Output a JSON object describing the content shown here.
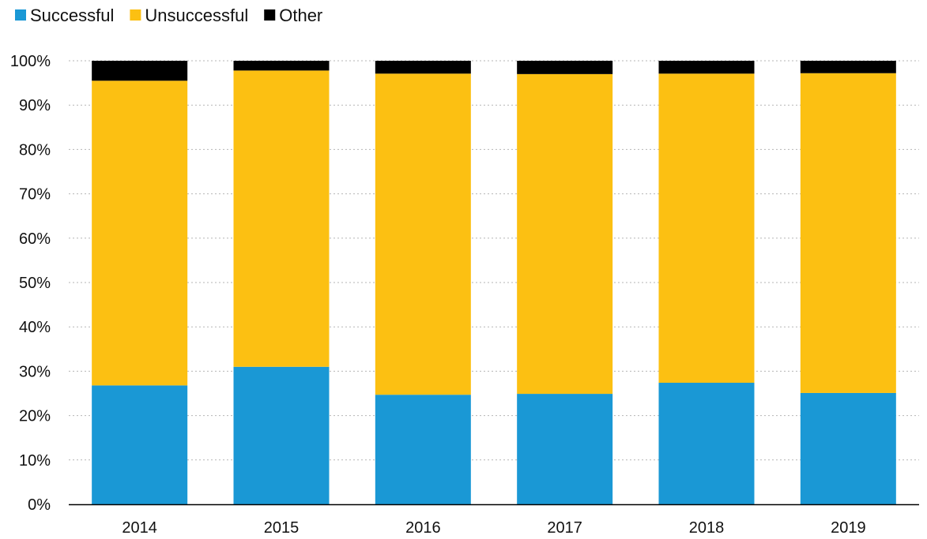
{
  "chart_data": {
    "type": "bar",
    "stacked": true,
    "title": "",
    "xlabel": "",
    "ylabel": "",
    "categories": [
      "2014",
      "2015",
      "2016",
      "2017",
      "2018",
      "2019"
    ],
    "series": [
      {
        "name": "Successful",
        "color": "#1a98d5",
        "values": [
          26.8,
          31.0,
          24.7,
          24.9,
          27.4,
          25.1
        ]
      },
      {
        "name": "Unsuccessful",
        "color": "#fcc012",
        "values": [
          68.7,
          66.8,
          72.4,
          72.1,
          69.7,
          72.1
        ]
      },
      {
        "name": "Other",
        "color": "#000000",
        "values": [
          4.5,
          2.2,
          2.9,
          3.0,
          2.9,
          2.8
        ]
      }
    ],
    "ylim": [
      0,
      100
    ],
    "yticks": [
      "0%",
      "10%",
      "20%",
      "30%",
      "40%",
      "50%",
      "60%",
      "70%",
      "80%",
      "90%",
      "100%"
    ],
    "grid": true,
    "legend_position": "top-left"
  }
}
